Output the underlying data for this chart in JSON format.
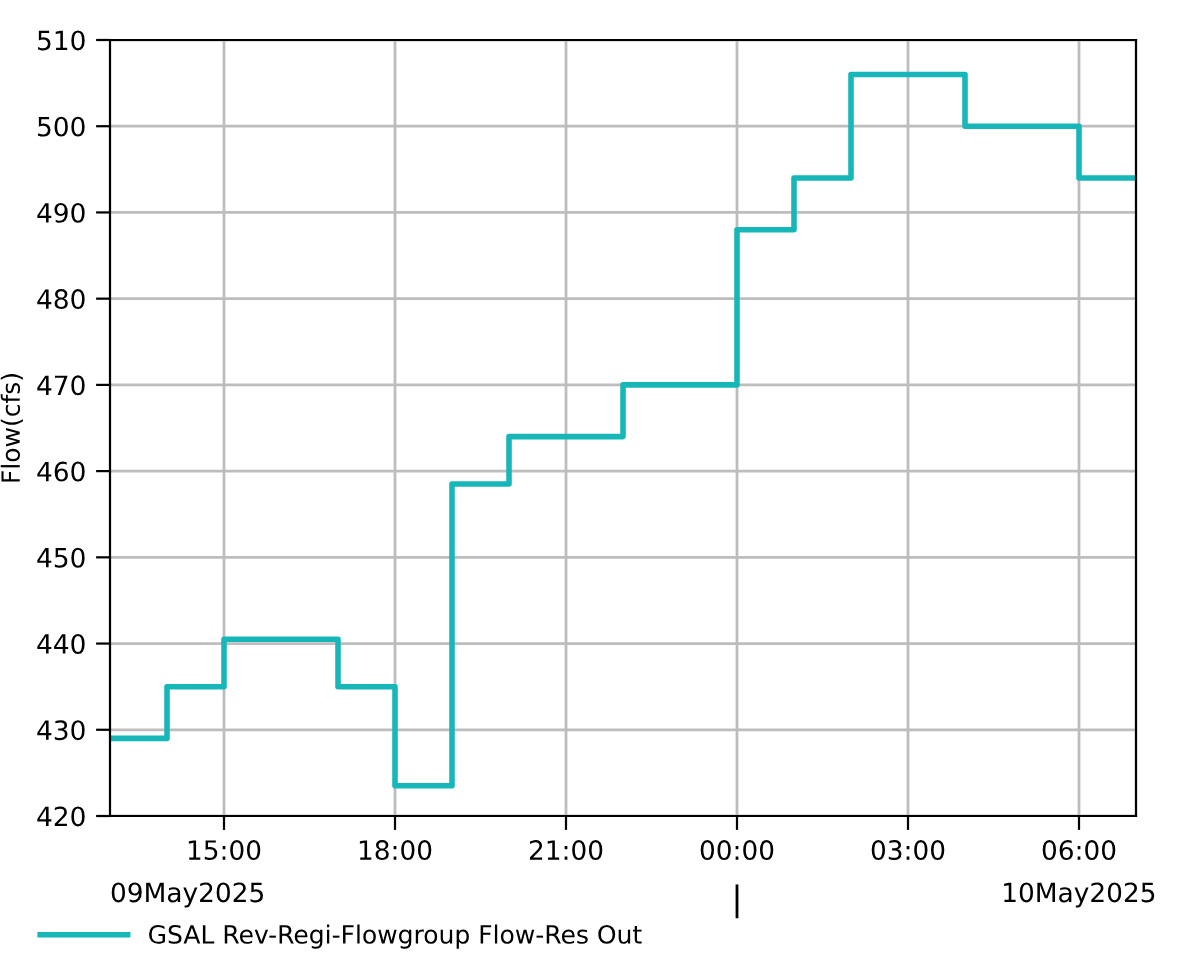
{
  "chart_data": {
    "type": "step",
    "ylabel": "Flow(cfs)",
    "series": [
      {
        "name": "GSAL Rev-Regi-Flowgroup Flow-Res Out",
        "color": "#17b7b9",
        "x": [
          "2025-05-09T13:00",
          "2025-05-09T14:00",
          "2025-05-09T15:00",
          "2025-05-09T17:00",
          "2025-05-09T18:00",
          "2025-05-09T19:00",
          "2025-05-09T20:00",
          "2025-05-09T22:00",
          "2025-05-10T00:00",
          "2025-05-10T01:00",
          "2025-05-10T02:00",
          "2025-05-10T04:00",
          "2025-05-10T06:00",
          "2025-05-10T07:00"
        ],
        "values": [
          429,
          435,
          440.5,
          435,
          423.5,
          458.5,
          464,
          470,
          488,
          494,
          506,
          500,
          494,
          494
        ]
      }
    ],
    "xlim": [
      "2025-05-09T13:00",
      "2025-05-10T07:00"
    ],
    "xticks": [
      {
        "value": "2025-05-09T15:00",
        "label": "15:00"
      },
      {
        "value": "2025-05-09T18:00",
        "label": "18:00"
      },
      {
        "value": "2025-05-09T21:00",
        "label": "21:00"
      },
      {
        "value": "2025-05-10T00:00",
        "label": "00:00"
      },
      {
        "value": "2025-05-10T03:00",
        "label": "03:00"
      },
      {
        "value": "2025-05-10T06:00",
        "label": "06:00"
      }
    ],
    "ylim": [
      420,
      510
    ],
    "yticks": [
      420,
      430,
      440,
      450,
      460,
      470,
      480,
      490,
      500,
      510
    ],
    "annotations": [
      "09May2025",
      "10May2025"
    ],
    "grid": true,
    "legend": "bottom"
  }
}
